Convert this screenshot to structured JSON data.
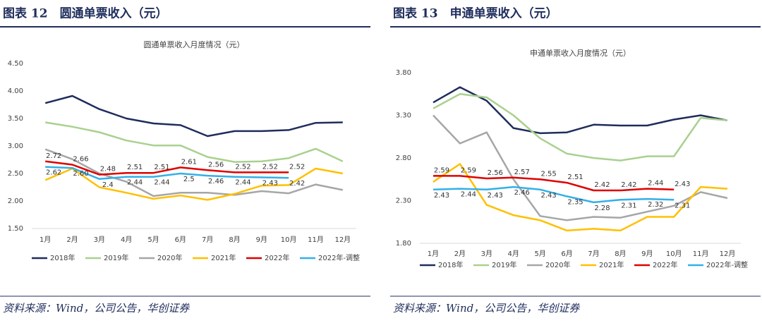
{
  "chart_data": [
    {
      "type": "line",
      "header": "图表 12　圆通单票收入（元）",
      "title": "圆通单票收入月度情况（元）",
      "source": "资料来源：Wind，公司公告，华创证券",
      "categories": [
        "1月",
        "2月",
        "3月",
        "4月",
        "5月",
        "6月",
        "7月",
        "8月",
        "9月",
        "10月",
        "11月",
        "12月"
      ],
      "ylim": [
        1.5,
        4.5
      ],
      "yticks": [
        {
          "value": 1.5,
          "label": "1.50"
        },
        {
          "value": 2,
          "label": "2.00"
        },
        {
          "value": 2.5,
          "label": "2.50"
        },
        {
          "value": 3,
          "label": "3.00"
        },
        {
          "value": 3.5,
          "label": "3.50"
        },
        {
          "value": 4,
          "label": "4.00"
        },
        {
          "value": 4.5,
          "label": "4.50"
        }
      ],
      "legend": "bottom",
      "series": [
        {
          "name": "2018年",
          "color": "#1f2d5c",
          "values": [
            3.78,
            3.91,
            3.67,
            3.5,
            3.41,
            3.38,
            3.18,
            3.27,
            3.27,
            3.29,
            3.42,
            3.43
          ]
        },
        {
          "name": "2019年",
          "color": "#a9d18e",
          "values": [
            3.43,
            3.35,
            3.25,
            3.1,
            3.01,
            3.01,
            2.8,
            2.71,
            2.72,
            2.78,
            2.95,
            2.72
          ]
        },
        {
          "name": "2020年",
          "color": "#a6a6a6",
          "values": [
            2.94,
            2.76,
            2.5,
            2.35,
            2.09,
            2.15,
            2.15,
            2.11,
            2.18,
            2.14,
            2.3,
            2.2
          ]
        },
        {
          "name": "2021年",
          "color": "#ffc000",
          "values": [
            2.38,
            2.59,
            2.25,
            2.15,
            2.04,
            2.1,
            2.02,
            2.13,
            2.28,
            2.29,
            2.59,
            2.5
          ]
        },
        {
          "name": "2022年",
          "color": "#e00000",
          "values": [
            2.72,
            2.66,
            2.48,
            2.51,
            2.51,
            2.61,
            2.56,
            2.52,
            2.52,
            2.52,
            null,
            null
          ],
          "value_labels": [
            "2.72",
            "2.66",
            "2.48",
            "2.51",
            "2.51",
            "2.61",
            "2.56",
            "2.52",
            "2.52",
            "2.52",
            null,
            null
          ]
        },
        {
          "name": "2022年-调整",
          "color": "#33b0e8",
          "values": [
            2.62,
            2.6,
            2.4,
            2.44,
            2.44,
            2.5,
            2.46,
            2.44,
            2.43,
            2.42,
            null,
            null
          ],
          "value_labels": [
            "2.62",
            "2.60",
            "2.4",
            "2.44",
            "2.44",
            "2.5",
            "2.46",
            "2.44",
            "2.43",
            "2.42",
            null,
            null
          ]
        }
      ]
    },
    {
      "type": "line",
      "header": "图表 13　申通单票收入（元）",
      "title": "申通单票收入月度情况（元）",
      "source": "资料来源：Wind，公司公告，华创证券",
      "categories": [
        "1月",
        "2月",
        "3月",
        "4月",
        "5月",
        "6月",
        "7月",
        "8月",
        "9月",
        "10月",
        "11月",
        "12月"
      ],
      "ylim": [
        1.8,
        3.8
      ],
      "yticks": [
        {
          "value": 1.8,
          "label": "1.80"
        },
        {
          "value": 2.3,
          "label": "2.30"
        },
        {
          "value": 2.8,
          "label": "2.80"
        },
        {
          "value": 3.3,
          "label": "3.30"
        },
        {
          "value": 3.8,
          "label": "3.80"
        }
      ],
      "legend": "bottom",
      "series": [
        {
          "name": "2018年",
          "color": "#1f2d5c",
          "values": [
            3.45,
            3.63,
            3.47,
            3.15,
            3.09,
            3.1,
            3.19,
            3.18,
            3.18,
            3.25,
            3.3,
            3.24
          ]
        },
        {
          "name": "2019年",
          "color": "#a9d18e",
          "values": [
            3.38,
            3.55,
            3.51,
            3.3,
            3.03,
            2.85,
            2.8,
            2.77,
            2.82,
            2.82,
            3.27,
            3.24
          ]
        },
        {
          "name": "2020年",
          "color": "#a6a6a6",
          "values": [
            3.3,
            2.97,
            3.1,
            2.55,
            2.12,
            2.07,
            2.11,
            2.1,
            2.17,
            2.24,
            2.4,
            2.33
          ]
        },
        {
          "name": "2021年",
          "color": "#ffc000",
          "values": [
            2.52,
            2.73,
            2.25,
            2.13,
            2.07,
            1.95,
            1.97,
            1.95,
            2.11,
            2.11,
            2.46,
            2.44
          ]
        },
        {
          "name": "2022年",
          "color": "#e00000",
          "values": [
            2.59,
            2.59,
            2.56,
            2.57,
            2.55,
            2.51,
            2.42,
            2.42,
            2.44,
            2.43,
            null,
            null
          ],
          "value_labels": [
            "2.59",
            "2.59",
            "2.56",
            "2.57",
            "2.55",
            "2.51",
            "2.42",
            "2.42",
            "2.44",
            "2.43",
            null,
            null
          ]
        },
        {
          "name": "2022年-调整",
          "color": "#33b0e8",
          "values": [
            2.43,
            2.44,
            2.43,
            2.46,
            2.43,
            2.35,
            2.28,
            2.31,
            2.32,
            2.31,
            null,
            null
          ],
          "value_labels": [
            "2.43",
            "2.44",
            "2.43",
            "2.46",
            "2.43",
            "2.35",
            "2.28",
            "2.31",
            "2.32",
            "2.31",
            null,
            null
          ]
        }
      ]
    }
  ]
}
